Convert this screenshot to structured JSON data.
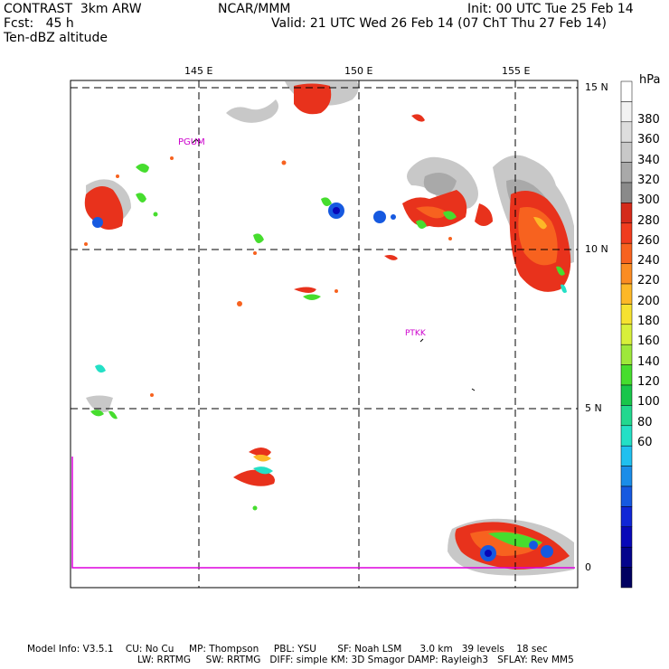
{
  "header": {
    "line1_left": "CONTRAST  3km ARW",
    "line1_center": "NCAR/MMM",
    "line1_right": "Init: 00 UTC Tue 25 Feb 14",
    "line2_left": "Fcst:   45 h",
    "line2_right": "Valid: 21 UTC Wed 26 Feb 14 (07 ChT Thu 27 Feb 14)",
    "line3_left": "Ten-dBZ altitude"
  },
  "map": {
    "lon_labels": [
      "145 E",
      "150 E",
      "155 E"
    ],
    "lat_labels": [
      "15 N",
      "10 N",
      "5 N",
      "0"
    ],
    "stations": [
      "PGUM",
      "PTKK"
    ],
    "station_color": "#cc00cc",
    "boundary_color": "#dd00dd"
  },
  "colorbar": {
    "unit": "hPa",
    "labels": [
      "380",
      "360",
      "340",
      "320",
      "300",
      "280",
      "260",
      "240",
      "220",
      "200",
      "180",
      "160",
      "140",
      "120",
      "100",
      "80",
      "60"
    ],
    "colors": [
      "#ffffff",
      "#f2f2f2",
      "#dddddd",
      "#c8c8c8",
      "#a9a9a9",
      "#8a8a8a",
      "#d42a1a",
      "#f03c1e",
      "#f7621f",
      "#fb8c22",
      "#fdb827",
      "#f6e230",
      "#d8f03a",
      "#9ee83a",
      "#46dd2e",
      "#19c64b",
      "#22d88f",
      "#24e0c6",
      "#20c0ef",
      "#1a8de8",
      "#1659e0",
      "#1026d6",
      "#0808b8",
      "#04048c",
      "#000060"
    ]
  },
  "footer": {
    "line1": "Model Info: V3.5.1    CU: No Cu     MP: Thompson     PBL: YSU       SF: Noah LSM      3.0 km   39 levels    18 sec",
    "line2": "LW: RRTMG     SW: RRTMG   DIFF: simple KM: 3D Smagor DAMP: Rayleigh3   SFLAY: Rev MM5"
  }
}
